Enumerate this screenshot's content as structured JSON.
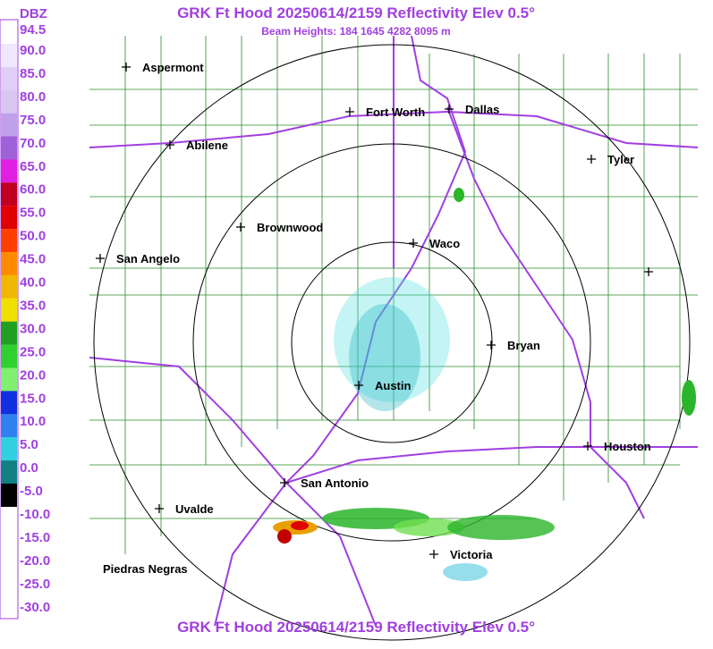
{
  "header": {
    "title": "GRK Ft Hood 20250614/2159 Reflectivity Elev 0.5°",
    "subtitle": "Beam Heights: 184 1645 4282 8095 m"
  },
  "footer": {
    "title": "GRK Ft Hood 20250614/2159 Reflectivity Elev 0.5°"
  },
  "legend": {
    "unit": "DBZ",
    "labels": [
      "94.5",
      "90.0",
      "85.0",
      "80.0",
      "75.0",
      "70.0",
      "65.0",
      "60.0",
      "55.0",
      "50.0",
      "45.0",
      "40.0",
      "35.0",
      "30.0",
      "25.0",
      "20.0",
      "15.0",
      "10.0",
      "5.0",
      "0.0",
      "-5.0",
      "-10.0",
      "-15.0",
      "-20.0",
      "-25.0",
      "-30.0"
    ]
  },
  "cities": [
    "Aspermont",
    "Fort Worth",
    "Dallas",
    "Abilene",
    "Tyler",
    "Brownwood",
    "Waco",
    "San Angelo",
    "Bryan",
    "Austin",
    "Houston",
    "San Antonio",
    "Uvalde",
    "Victoria",
    "Piedras Negras"
  ]
}
